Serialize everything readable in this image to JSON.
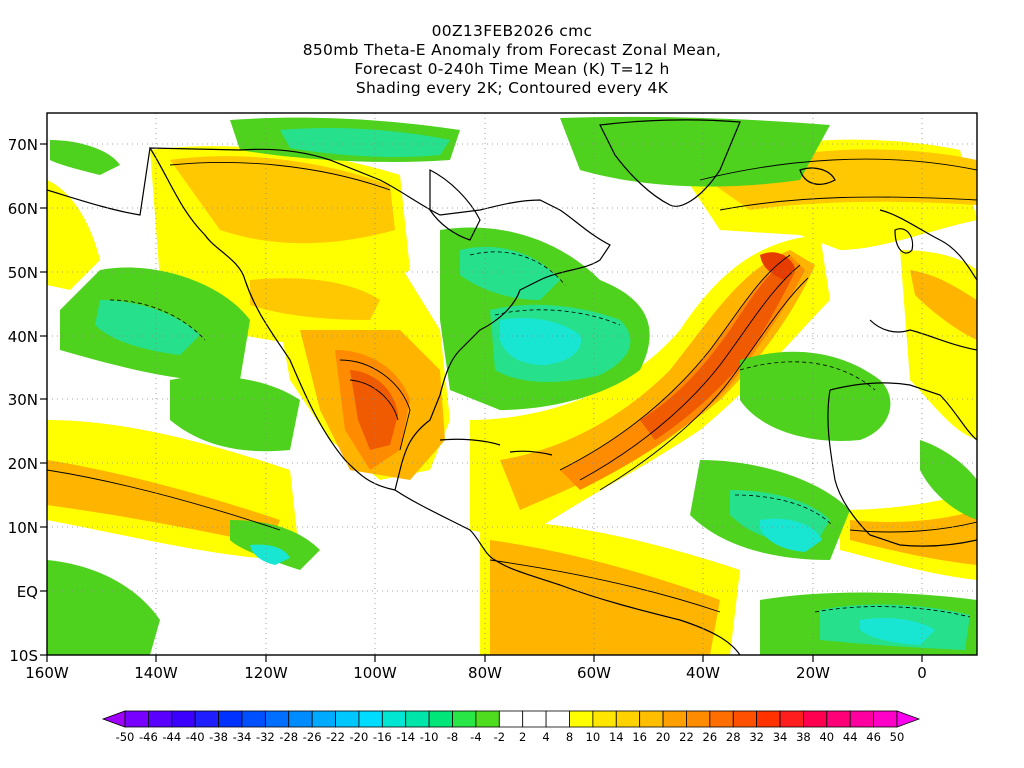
{
  "title": {
    "line1": "00Z13FEB2026 cmc",
    "line2": "850mb Theta-E Anomaly from Forecast Zonal Mean,",
    "line3": "Forecast 0-240h Time Mean (K) T=12 h",
    "line4": "Shading every 2K; Contoured every 4K"
  },
  "map": {
    "lon_range": [
      -160,
      10
    ],
    "lat_range": [
      -10,
      75
    ],
    "lat_ticks": [
      "70N",
      "60N",
      "50N",
      "40N",
      "30N",
      "20N",
      "10N",
      "EQ",
      "10S"
    ],
    "lon_ticks": [
      "160W",
      "140W",
      "120W",
      "100W",
      "80W",
      "60W",
      "40W",
      "20W",
      "0"
    ],
    "colors": {
      "neg_strong": "#19b4ff",
      "neg_mid": "#19e6d2",
      "neg_light": "#26e08c",
      "neg_weak": "#4ed21e",
      "pos_weak": "#ffff00",
      "pos_light": "#ffdc00",
      "pos_mid": "#ffb400",
      "pos_strong": "#ff7800",
      "pos_max": "#f03c00"
    }
  },
  "colorbar": {
    "labels": [
      "-50",
      "-46",
      "-44",
      "-40",
      "-38",
      "-34",
      "-32",
      "-28",
      "-26",
      "-22",
      "-20",
      "-16",
      "-14",
      "-10",
      "-8",
      "-4",
      "-2",
      "2",
      "4",
      "8",
      "10",
      "14",
      "16",
      "20",
      "22",
      "26",
      "28",
      "32",
      "34",
      "38",
      "40",
      "44",
      "46",
      "50"
    ],
    "colors": [
      "#a000ff",
      "#7800ff",
      "#5a00ff",
      "#3c00ff",
      "#1e1eff",
      "#0032ff",
      "#0050ff",
      "#006eff",
      "#008cff",
      "#00aaff",
      "#00c8ff",
      "#00dcff",
      "#00e6d2",
      "#00e6aa",
      "#00e678",
      "#28e646",
      "#50dc1e",
      "#ffffff",
      "#ffffff",
      "#ffffff",
      "#ffff00",
      "#ffe600",
      "#ffd200",
      "#ffbe00",
      "#ffa000",
      "#ff8c00",
      "#ff6e00",
      "#ff5000",
      "#ff3200",
      "#ff1e1e",
      "#ff0050",
      "#ff0078",
      "#ff00a0",
      "#ff00c8",
      "#ff00f0"
    ]
  }
}
